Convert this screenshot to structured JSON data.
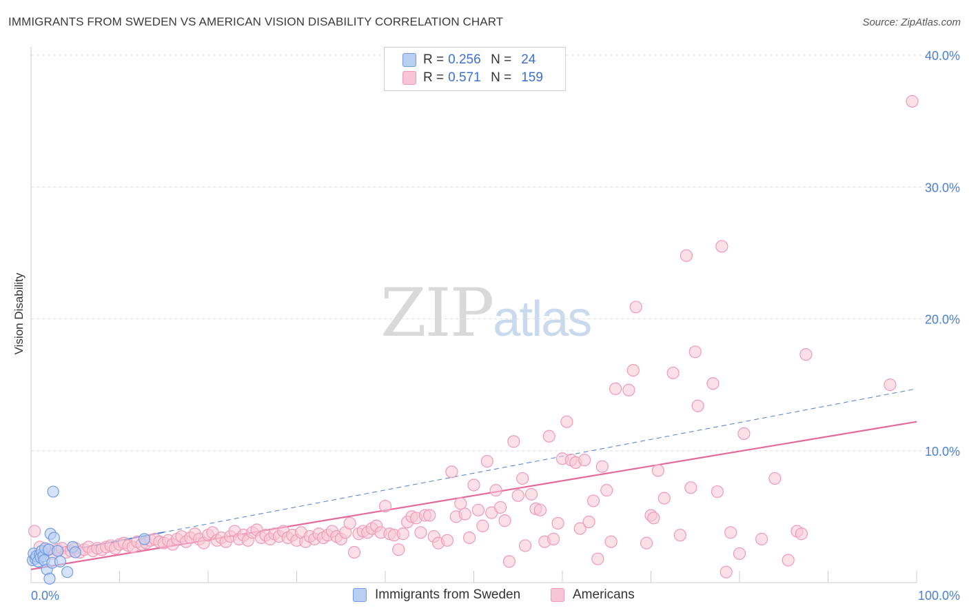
{
  "title": "IMMIGRANTS FROM SWEDEN VS AMERICAN VISION DISABILITY CORRELATION CHART",
  "source": "Source: ZipAtlas.com",
  "watermark": {
    "zip": "ZIP",
    "atlas": "atlas"
  },
  "legend": {
    "series1": {
      "r_label": "R =",
      "r_value": "0.256",
      "n_label": "N =",
      "n_value": "24"
    },
    "series2": {
      "r_label": "R =",
      "r_value": "0.571",
      "n_label": "N =",
      "n_value": "159"
    }
  },
  "colors": {
    "blue_fill": "#b9cff2",
    "blue_stroke": "#6f9be0",
    "blue_line": "#4a7fd1",
    "pink_fill": "#f7c6d6",
    "pink_stroke": "#ef9ab5",
    "pink_line": "#e8679a",
    "grid": "#dddddd",
    "tick_text": "#4a7fd1"
  },
  "chart_data": {
    "type": "scatter",
    "title": "IMMIGRANTS FROM SWEDEN VS AMERICAN VISION DISABILITY CORRELATION CHART",
    "xlabel": "",
    "ylabel": "Vision Disability",
    "xlim": [
      0,
      100
    ],
    "ylim": [
      0,
      40
    ],
    "y_ticks": [
      10,
      20,
      30,
      40
    ],
    "y_tick_labels": [
      "10.0%",
      "20.0%",
      "30.0%",
      "40.0%"
    ],
    "x_tick_labels": [
      "0.0%",
      "100.0%"
    ],
    "grid": true,
    "series": [
      {
        "name": "Immigrants from Sweden",
        "r": 0.256,
        "n": 24,
        "trend": {
          "x0": 0,
          "y0": 1.9,
          "x1": 100,
          "y1": 14.7,
          "style": "dashed",
          "solid_until_x": 15
        },
        "points": [
          [
            0.2,
            1.7
          ],
          [
            0.3,
            2.2
          ],
          [
            0.5,
            1.8
          ],
          [
            0.6,
            2.0
          ],
          [
            0.8,
            1.6
          ],
          [
            1.0,
            2.1
          ],
          [
            1.1,
            1.9
          ],
          [
            1.2,
            2.4
          ],
          [
            1.4,
            2.0
          ],
          [
            1.5,
            1.7
          ],
          [
            1.6,
            2.6
          ],
          [
            1.8,
            1.0
          ],
          [
            2.0,
            2.5
          ],
          [
            2.1,
            0.3
          ],
          [
            2.2,
            3.7
          ],
          [
            2.4,
            1.5
          ],
          [
            2.5,
            6.9
          ],
          [
            2.6,
            3.4
          ],
          [
            3.0,
            2.4
          ],
          [
            3.3,
            1.6
          ],
          [
            4.1,
            0.8
          ],
          [
            4.7,
            2.7
          ],
          [
            5.0,
            2.3
          ],
          [
            12.8,
            3.3
          ]
        ]
      },
      {
        "name": "Americans",
        "r": 0.571,
        "n": 159,
        "trend": {
          "x0": 0,
          "y0": 1.0,
          "x1": 100,
          "y1": 12.2,
          "style": "solid"
        },
        "points": [
          [
            0.4,
            3.9
          ],
          [
            1.0,
            2.7
          ],
          [
            1.5,
            2.3
          ],
          [
            2.0,
            2.5
          ],
          [
            2.5,
            2.2
          ],
          [
            3.0,
            2.5
          ],
          [
            3.5,
            2.6
          ],
          [
            4.0,
            2.3
          ],
          [
            4.5,
            2.4
          ],
          [
            5.0,
            2.6
          ],
          [
            5.5,
            2.3
          ],
          [
            6.0,
            2.5
          ],
          [
            6.5,
            2.7
          ],
          [
            7.0,
            2.4
          ],
          [
            7.5,
            2.6
          ],
          [
            8.0,
            2.5
          ],
          [
            8.5,
            2.7
          ],
          [
            9.0,
            2.8
          ],
          [
            9.5,
            2.6
          ],
          [
            10.0,
            2.9
          ],
          [
            10.5,
            3.0
          ],
          [
            11.0,
            2.8
          ],
          [
            11.5,
            2.7
          ],
          [
            12.0,
            3.1
          ],
          [
            12.5,
            2.9
          ],
          [
            13.0,
            3.0
          ],
          [
            13.5,
            3.2
          ],
          [
            14.0,
            3.3
          ],
          [
            14.5,
            3.1
          ],
          [
            15.0,
            3.0
          ],
          [
            15.5,
            3.2
          ],
          [
            16.0,
            2.9
          ],
          [
            16.5,
            3.3
          ],
          [
            17.0,
            3.5
          ],
          [
            17.5,
            3.1
          ],
          [
            18.0,
            3.4
          ],
          [
            18.5,
            3.7
          ],
          [
            19.0,
            3.3
          ],
          [
            19.5,
            3.0
          ],
          [
            20.0,
            3.6
          ],
          [
            20.5,
            3.8
          ],
          [
            21.0,
            3.2
          ],
          [
            21.5,
            3.4
          ],
          [
            22.0,
            3.1
          ],
          [
            22.5,
            3.5
          ],
          [
            23.0,
            3.9
          ],
          [
            23.5,
            3.3
          ],
          [
            24.0,
            3.6
          ],
          [
            24.5,
            3.2
          ],
          [
            25.0,
            3.8
          ],
          [
            25.5,
            4.0
          ],
          [
            26.0,
            3.4
          ],
          [
            26.5,
            3.6
          ],
          [
            27.0,
            3.3
          ],
          [
            27.5,
            3.7
          ],
          [
            28.0,
            3.5
          ],
          [
            28.5,
            3.9
          ],
          [
            29.0,
            3.4
          ],
          [
            29.5,
            3.6
          ],
          [
            30.0,
            3.2
          ],
          [
            30.5,
            3.8
          ],
          [
            31.0,
            3.1
          ],
          [
            31.5,
            3.5
          ],
          [
            32.0,
            3.3
          ],
          [
            32.5,
            3.7
          ],
          [
            33.0,
            3.4
          ],
          [
            33.5,
            3.6
          ],
          [
            34.0,
            3.9
          ],
          [
            34.5,
            3.5
          ],
          [
            35.0,
            3.3
          ],
          [
            35.5,
            3.8
          ],
          [
            36.0,
            4.5
          ],
          [
            36.5,
            2.3
          ],
          [
            37.0,
            3.7
          ],
          [
            37.5,
            3.9
          ],
          [
            38.0,
            3.8
          ],
          [
            38.5,
            4.1
          ],
          [
            39.0,
            4.3
          ],
          [
            39.5,
            3.8
          ],
          [
            40.0,
            5.8
          ],
          [
            40.5,
            3.7
          ],
          [
            41.0,
            3.6
          ],
          [
            41.5,
            2.5
          ],
          [
            42.0,
            3.7
          ],
          [
            42.5,
            4.6
          ],
          [
            43.0,
            5.0
          ],
          [
            43.5,
            4.9
          ],
          [
            44.0,
            3.8
          ],
          [
            44.5,
            5.1
          ],
          [
            45.0,
            5.1
          ],
          [
            45.5,
            3.5
          ],
          [
            46.0,
            3.0
          ],
          [
            47.0,
            3.2
          ],
          [
            47.5,
            8.4
          ],
          [
            48.0,
            5.0
          ],
          [
            48.5,
            6.0
          ],
          [
            49.0,
            5.2
          ],
          [
            49.5,
            3.4
          ],
          [
            50.0,
            7.4
          ],
          [
            50.5,
            5.5
          ],
          [
            51.0,
            4.3
          ],
          [
            51.5,
            9.2
          ],
          [
            52.0,
            5.3
          ],
          [
            52.5,
            7.0
          ],
          [
            53.0,
            5.7
          ],
          [
            53.5,
            4.7
          ],
          [
            54.0,
            1.6
          ],
          [
            54.5,
            10.7
          ],
          [
            55.0,
            6.6
          ],
          [
            55.5,
            7.9
          ],
          [
            55.8,
            2.8
          ],
          [
            56.5,
            6.7
          ],
          [
            57.0,
            5.6
          ],
          [
            57.5,
            5.5
          ],
          [
            58.0,
            3.1
          ],
          [
            58.5,
            11.1
          ],
          [
            59.0,
            3.3
          ],
          [
            59.5,
            4.5
          ],
          [
            60.0,
            9.4
          ],
          [
            60.5,
            12.2
          ],
          [
            61.0,
            9.3
          ],
          [
            61.5,
            9.1
          ],
          [
            62.0,
            4.1
          ],
          [
            62.5,
            9.3
          ],
          [
            63.0,
            4.6
          ],
          [
            63.5,
            6.2
          ],
          [
            64.0,
            1.8
          ],
          [
            64.5,
            8.8
          ],
          [
            65.0,
            7.0
          ],
          [
            65.5,
            3.1
          ],
          [
            66.0,
            14.7
          ],
          [
            67.5,
            14.6
          ],
          [
            68.0,
            16.1
          ],
          [
            68.3,
            20.9
          ],
          [
            69.5,
            3.0
          ],
          [
            70.0,
            5.1
          ],
          [
            70.3,
            4.9
          ],
          [
            70.8,
            8.5
          ],
          [
            71.5,
            6.4
          ],
          [
            72.5,
            15.9
          ],
          [
            73.3,
            3.6
          ],
          [
            74.0,
            24.8
          ],
          [
            74.5,
            7.2
          ],
          [
            75.0,
            17.5
          ],
          [
            75.3,
            13.4
          ],
          [
            77.0,
            15.1
          ],
          [
            77.5,
            6.9
          ],
          [
            78.0,
            25.5
          ],
          [
            78.5,
            0.8
          ],
          [
            79.0,
            3.8
          ],
          [
            80.0,
            2.2
          ],
          [
            80.5,
            11.3
          ],
          [
            82.5,
            3.3
          ],
          [
            84.0,
            7.9
          ],
          [
            85.5,
            1.7
          ],
          [
            86.5,
            3.9
          ],
          [
            87.0,
            3.7
          ],
          [
            87.5,
            17.3
          ],
          [
            97.0,
            15.0
          ],
          [
            99.5,
            36.5
          ]
        ]
      }
    ]
  },
  "bottom_legend": {
    "item1": "Immigrants from Sweden",
    "item2": "Americans"
  }
}
